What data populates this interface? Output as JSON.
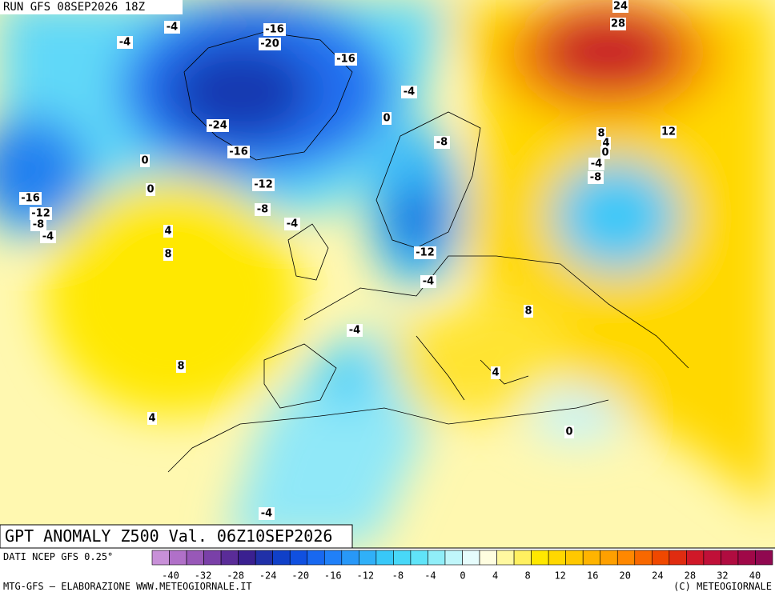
{
  "header": "RUN GFS 08SEP2026 18Z",
  "title": "GPT ANOMALY Z500 Val. 06Z10SEP2026",
  "source": "DATI NCEP GFS 0.25°",
  "footer_left": "MTG-GFS — ELABORAZIONE WWW.METEOGIORNALE.IT",
  "footer_right": "(C) METEOGIORNALE",
  "contour_labels": [
    24,
    28,
    -4,
    -16,
    -20,
    -4,
    -16,
    -4,
    0,
    -24,
    8,
    12,
    4,
    0,
    -8,
    -16,
    0,
    -4,
    -8,
    -12,
    0,
    -16,
    -12,
    -8,
    -8,
    -4,
    -4,
    4,
    8,
    -12,
    -4,
    8,
    -4,
    8,
    4,
    4,
    0,
    -4
  ],
  "scale": {
    "labels": [
      -40,
      -32,
      -28,
      -24,
      -20,
      -16,
      -12,
      -8,
      -4,
      0,
      4,
      8,
      12,
      16,
      20,
      24,
      28,
      32,
      40
    ],
    "colors": [
      "#c890d8",
      "#b070c8",
      "#9858b8",
      "#7a40a8",
      "#5a2c98",
      "#3a2090",
      "#2030a8",
      "#1040c8",
      "#1050e0",
      "#1868f0",
      "#2080f8",
      "#2898f8",
      "#30b0f8",
      "#38c8f8",
      "#48d8f8",
      "#60e4f8",
      "#90eef8",
      "#c0f6fa",
      "#e6fcfc",
      "#fffde0",
      "#fff8a0",
      "#fff060",
      "#ffe800",
      "#ffd800",
      "#ffc800",
      "#ffb400",
      "#ffa000",
      "#ff8800",
      "#f86800",
      "#f04800",
      "#e02c10",
      "#d01828",
      "#c01038",
      "#b00c40",
      "#a00848",
      "#900850"
    ]
  }
}
